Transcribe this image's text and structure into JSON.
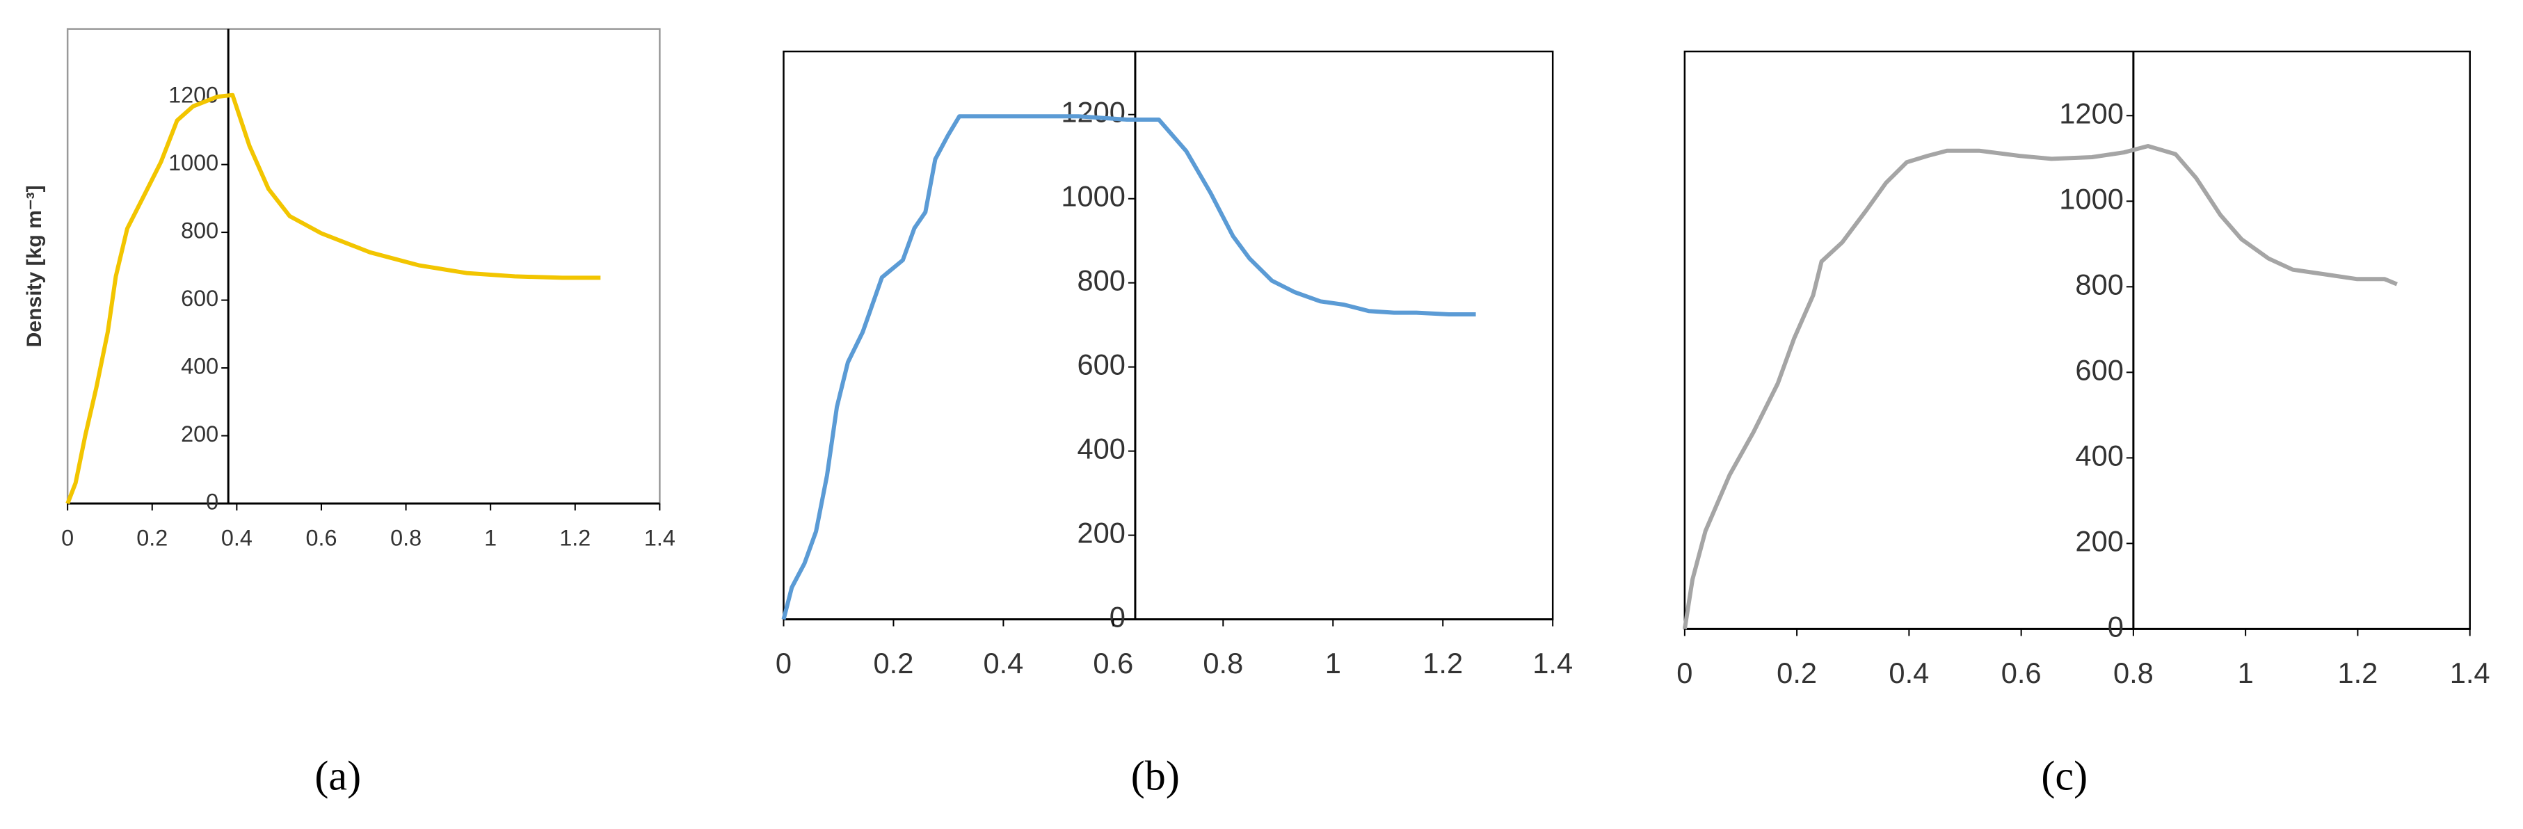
{
  "chart_data": [
    {
      "type": "line",
      "caption": "(a)",
      "y_label": "Density [kg m⁻³]",
      "color": "#f2c500",
      "xlim": [
        0,
        1.4
      ],
      "xticks": [
        0,
        0.2,
        0.4,
        0.6,
        0.8,
        1,
        1.2,
        1.4
      ],
      "ylim": [
        0,
        1400
      ],
      "yticks": [
        0,
        200,
        400,
        600,
        800,
        1000,
        1200
      ],
      "y_axis_at": 0.38,
      "x": [
        0,
        0.019,
        0.042,
        0.068,
        0.095,
        0.114,
        0.141,
        0.183,
        0.221,
        0.259,
        0.297,
        0.354,
        0.39,
        0.43,
        0.475,
        0.525,
        0.6,
        0.715,
        0.83,
        0.943,
        1.057,
        1.17,
        1.26
      ],
      "values": [
        0,
        61,
        202,
        342,
        506,
        670,
        811,
        914,
        1008,
        1130,
        1172,
        1200,
        1205,
        1055,
        928,
        848,
        797,
        741,
        703,
        680,
        670,
        666,
        666
      ]
    },
    {
      "type": "line",
      "caption": "(b)",
      "color": "#5b9bd5",
      "xlim": [
        0,
        1.4
      ],
      "xticks": [
        0,
        0.2,
        0.4,
        0.6,
        0.8,
        1,
        1.2,
        1.4
      ],
      "ylim": [
        0,
        1350
      ],
      "yticks": [
        0,
        200,
        400,
        600,
        800,
        1000,
        1200
      ],
      "y_axis_at": 0.64,
      "x": [
        0,
        0.015,
        0.038,
        0.059,
        0.079,
        0.097,
        0.117,
        0.144,
        0.179,
        0.217,
        0.238,
        0.258,
        0.276,
        0.299,
        0.32,
        0.367,
        0.45,
        0.537,
        0.625,
        0.683,
        0.733,
        0.777,
        0.818,
        0.848,
        0.889,
        0.93,
        0.977,
        1.02,
        1.065,
        1.111,
        1.152,
        1.211,
        1.26
      ],
      "values": [
        0,
        76,
        133,
        209,
        342,
        505,
        611,
        683,
        813,
        854,
        930,
        968,
        1094,
        1150,
        1196,
        1196,
        1196,
        1196,
        1188,
        1188,
        1113,
        1014,
        911,
        858,
        805,
        778,
        756,
        748,
        733,
        729,
        729,
        725,
        725
      ]
    },
    {
      "type": "line",
      "caption": "(c)",
      "color": "#a5a5a5",
      "xlim": [
        0,
        1.4
      ],
      "xticks": [
        0,
        0.2,
        0.4,
        0.6,
        0.8,
        1,
        1.2,
        1.4
      ],
      "ylim": [
        0,
        1350
      ],
      "yticks": [
        0,
        200,
        400,
        600,
        800,
        1000,
        1200
      ],
      "y_axis_at": 0.8,
      "x": [
        0,
        0.014,
        0.037,
        0.08,
        0.123,
        0.166,
        0.195,
        0.229,
        0.244,
        0.281,
        0.324,
        0.359,
        0.396,
        0.433,
        0.468,
        0.525,
        0.597,
        0.654,
        0.726,
        0.783,
        0.826,
        0.875,
        0.912,
        0.955,
        0.993,
        1.041,
        1.084,
        1.142,
        1.199,
        1.248,
        1.27
      ],
      "values": [
        0,
        116,
        229,
        360,
        461,
        574,
        679,
        780,
        859,
        904,
        979,
        1043,
        1091,
        1106,
        1118,
        1118,
        1106,
        1099,
        1103,
        1114,
        1129,
        1110,
        1054,
        968,
        911,
        866,
        840,
        829,
        818,
        818,
        806
      ]
    }
  ]
}
